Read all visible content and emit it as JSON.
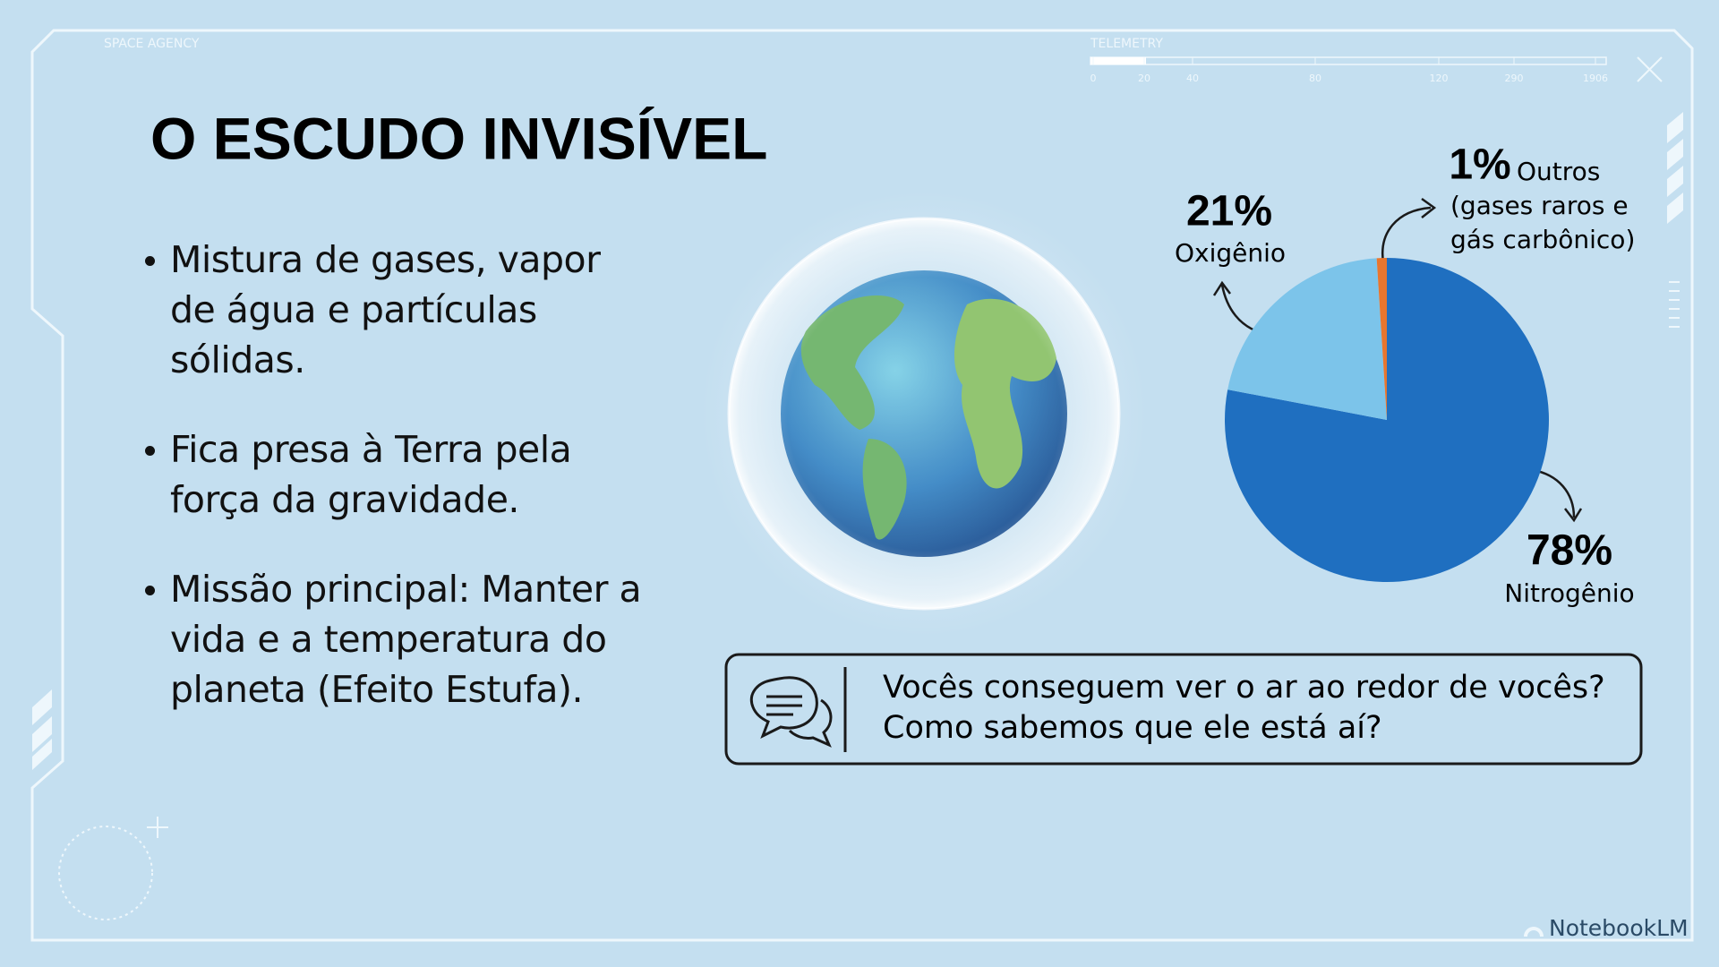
{
  "header": {
    "agency": "SPACE AGENCY",
    "telemetry": "TELEMETRY",
    "telemetry_ticks": [
      "0",
      "20",
      "40",
      "80",
      "120",
      "290",
      "1906"
    ]
  },
  "title": "O ESCUDO INVISÍVEL",
  "bullets": [
    "Mistura de gases, vapor de água e partículas sólidas.",
    "Fica presa à Terra pela força da gravidade.",
    "Missão principal: Manter a vida e a temperatura do planeta (Efeito Estufa)."
  ],
  "chart_data": {
    "type": "pie",
    "categories": [
      "Nitrogênio",
      "Oxigênio",
      "Outros"
    ],
    "values": [
      78,
      21,
      1
    ],
    "value_labels": [
      "78%",
      "21%",
      "1%"
    ],
    "colors": [
      "#1f6fc0",
      "#7cc4ea",
      "#e8762e"
    ],
    "annotations": [
      "(gases raros e",
      "gás carbônico)"
    ]
  },
  "question": [
    "Vocês conseguem ver o ar ao redor de vocês?",
    "Como sabemos que ele está aí?"
  ],
  "watermark": "NotebookLM"
}
